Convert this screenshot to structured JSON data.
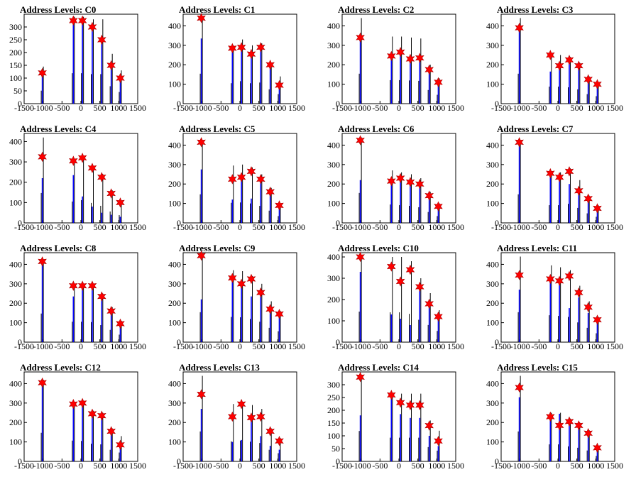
{
  "figure": {
    "title_prefix": "Address Levels"
  },
  "chart_data": [
    {
      "title": "Address Levels: C0",
      "type": "bar",
      "xlim": [
        -1500,
        1500
      ],
      "ylim": [
        0,
        350
      ],
      "yticks": [
        0,
        50,
        100,
        150,
        200,
        250,
        300
      ],
      "xticks": [
        -1500,
        -1000,
        -500,
        0,
        500,
        1000,
        1500
      ],
      "x": [
        -1020,
        -200,
        40,
        300,
        550,
        800,
        1040
      ],
      "black_peaks": [
        145,
        340,
        340,
        330,
        330,
        195,
        130
      ],
      "blue_peaks": [
        120,
        325,
        325,
        300,
        250,
        150,
        100
      ],
      "markers": [
        120,
        325,
        325,
        300,
        250,
        150,
        100
      ]
    },
    {
      "title": "Address Levels: C1",
      "type": "bar",
      "xlim": [
        -1500,
        1500
      ],
      "ylim": [
        0,
        460
      ],
      "yticks": [
        0,
        100,
        200,
        300,
        400
      ],
      "xticks": [
        -1500,
        -1000,
        -500,
        0,
        500,
        1000,
        1500
      ],
      "x": [
        -1020,
        -200,
        40,
        300,
        550,
        800,
        1040
      ],
      "black_peaks": [
        440,
        300,
        330,
        300,
        310,
        210,
        140
      ],
      "blue_peaks": [
        335,
        285,
        290,
        255,
        290,
        200,
        95
      ],
      "markers": [
        440,
        285,
        290,
        255,
        290,
        200,
        95
      ]
    },
    {
      "title": "Address Levels: C2",
      "type": "bar",
      "xlim": [
        -1500,
        1500
      ],
      "ylim": [
        0,
        460
      ],
      "yticks": [
        0,
        100,
        200,
        300,
        400
      ],
      "xticks": [
        -1500,
        -1000,
        -500,
        0,
        500,
        1000,
        1500
      ],
      "x": [
        -1020,
        -200,
        40,
        300,
        550,
        800,
        1040
      ],
      "black_peaks": [
        440,
        345,
        345,
        340,
        335,
        200,
        130
      ],
      "blue_peaks": [
        340,
        245,
        265,
        230,
        235,
        175,
        110
      ],
      "markers": [
        340,
        245,
        265,
        230,
        235,
        175,
        110
      ]
    },
    {
      "title": "Address Levels: C3",
      "type": "bar",
      "xlim": [
        -1500,
        1500
      ],
      "ylim": [
        0,
        460
      ],
      "yticks": [
        0,
        100,
        200,
        300,
        400
      ],
      "xticks": [
        -1500,
        -1000,
        -500,
        0,
        500,
        1000,
        1500
      ],
      "x": [
        -1020,
        -200,
        40,
        300,
        550,
        800,
        1040
      ],
      "black_peaks": [
        440,
        250,
        250,
        240,
        210,
        140,
        110
      ],
      "blue_peaks": [
        380,
        165,
        200,
        225,
        195,
        125,
        100
      ],
      "markers": [
        390,
        250,
        195,
        225,
        195,
        125,
        100
      ]
    },
    {
      "title": "Address Levels: C4",
      "type": "bar",
      "xlim": [
        -1500,
        1500
      ],
      "ylim": [
        0,
        440
      ],
      "yticks": [
        0,
        100,
        200,
        300,
        400
      ],
      "xticks": [
        -1500,
        -1000,
        -500,
        0,
        500,
        1000,
        1500
      ],
      "x": [
        -1020,
        -200,
        40,
        300,
        550,
        800,
        1040
      ],
      "black_peaks": [
        420,
        300,
        320,
        280,
        240,
        160,
        110
      ],
      "blue_peaks": [
        220,
        235,
        130,
        80,
        50,
        40,
        30
      ],
      "markers": [
        325,
        305,
        320,
        270,
        225,
        145,
        100
      ]
    },
    {
      "title": "Address Levels: C5",
      "type": "bar",
      "xlim": [
        -1500,
        1500
      ],
      "ylim": [
        0,
        460
      ],
      "yticks": [
        0,
        100,
        200,
        300,
        400
      ],
      "xticks": [
        -1500,
        -1000,
        -500,
        0,
        500,
        1000,
        1500
      ],
      "x": [
        -1020,
        -200,
        40,
        300,
        550,
        800,
        1040
      ],
      "black_peaks": [
        420,
        295,
        300,
        285,
        250,
        180,
        100
      ],
      "blue_peaks": [
        275,
        120,
        225,
        125,
        230,
        160,
        90
      ],
      "markers": [
        415,
        225,
        235,
        265,
        225,
        160,
        90
      ]
    },
    {
      "title": "Address Levels: C6",
      "type": "bar",
      "xlim": [
        -1500,
        1500
      ],
      "ylim": [
        0,
        460
      ],
      "yticks": [
        0,
        100,
        200,
        300,
        400
      ],
      "xticks": [
        -1500,
        -1000,
        -500,
        0,
        500,
        1000,
        1500
      ],
      "x": [
        -1020,
        -200,
        40,
        300,
        550,
        800,
        1040
      ],
      "black_peaks": [
        440,
        270,
        260,
        250,
        230,
        160,
        100
      ],
      "blue_peaks": [
        220,
        215,
        220,
        210,
        200,
        140,
        85
      ],
      "markers": [
        425,
        215,
        230,
        210,
        200,
        140,
        85
      ]
    },
    {
      "title": "Address Levels: C7",
      "type": "bar",
      "xlim": [
        -1500,
        1500
      ],
      "ylim": [
        0,
        460
      ],
      "yticks": [
        0,
        100,
        200,
        300,
        400
      ],
      "xticks": [
        -1500,
        -1000,
        -500,
        0,
        500,
        1000,
        1500
      ],
      "x": [
        -1020,
        -200,
        40,
        300,
        550,
        800,
        1040
      ],
      "black_peaks": [
        420,
        260,
        260,
        280,
        220,
        140,
        90
      ],
      "blue_peaks": [
        400,
        250,
        230,
        200,
        170,
        120,
        80
      ],
      "markers": [
        415,
        255,
        235,
        265,
        165,
        125,
        75
      ]
    },
    {
      "title": "Address Levels: C8",
      "type": "bar",
      "xlim": [
        -1500,
        1500
      ],
      "ylim": [
        0,
        460
      ],
      "yticks": [
        0,
        100,
        200,
        300,
        400
      ],
      "xticks": [
        -1500,
        -1000,
        -500,
        0,
        500,
        1000,
        1500
      ],
      "x": [
        -1020,
        -200,
        40,
        300,
        550,
        800,
        1040
      ],
      "black_peaks": [
        420,
        300,
        300,
        295,
        250,
        180,
        110
      ],
      "blue_peaks": [
        410,
        235,
        285,
        290,
        235,
        160,
        80
      ],
      "markers": [
        415,
        290,
        290,
        290,
        235,
        160,
        95
      ]
    },
    {
      "title": "Address Levels: C9",
      "type": "bar",
      "xlim": [
        -1500,
        1500
      ],
      "ylim": [
        0,
        460
      ],
      "yticks": [
        0,
        100,
        200,
        300,
        400
      ],
      "xticks": [
        -1500,
        -1000,
        -500,
        0,
        500,
        1000,
        1500
      ],
      "x": [
        -1020,
        -200,
        40,
        300,
        550,
        800,
        1040
      ],
      "black_peaks": [
        440,
        370,
        365,
        340,
        300,
        210,
        160
      ],
      "blue_peaks": [
        220,
        320,
        295,
        235,
        245,
        165,
        140
      ],
      "markers": [
        445,
        330,
        300,
        325,
        255,
        170,
        145
      ]
    },
    {
      "title": "Address Levels: C10",
      "type": "bar",
      "xlim": [
        -1500,
        1500
      ],
      "ylim": [
        0,
        420
      ],
      "yticks": [
        0,
        100,
        200,
        300,
        400
      ],
      "xticks": [
        -1500,
        -1000,
        -500,
        0,
        500,
        1000,
        1500
      ],
      "x": [
        -1020,
        -200,
        40,
        300,
        550,
        800,
        1040
      ],
      "black_peaks": [
        410,
        400,
        400,
        380,
        300,
        230,
        150
      ],
      "blue_peaks": [
        330,
        130,
        110,
        80,
        240,
        170,
        110
      ],
      "markers": [
        400,
        355,
        285,
        340,
        260,
        180,
        120
      ]
    },
    {
      "title": "Address Levels: C11",
      "type": "bar",
      "xlim": [
        -1500,
        1500
      ],
      "ylim": [
        0,
        460
      ],
      "yticks": [
        0,
        100,
        200,
        300,
        400
      ],
      "xticks": [
        -1500,
        -1000,
        -500,
        0,
        500,
        1000,
        1500
      ],
      "x": [
        -1020,
        -200,
        40,
        300,
        550,
        800,
        1040
      ],
      "black_peaks": [
        440,
        395,
        385,
        370,
        290,
        210,
        130
      ],
      "blue_peaks": [
        270,
        320,
        300,
        175,
        230,
        150,
        110
      ],
      "markers": [
        345,
        325,
        315,
        340,
        255,
        180,
        115
      ]
    },
    {
      "title": "Address Levels: C12",
      "type": "bar",
      "xlim": [
        -1500,
        1500
      ],
      "ylim": [
        0,
        460
      ],
      "yticks": [
        0,
        100,
        200,
        300,
        400
      ],
      "xticks": [
        -1500,
        -1000,
        -500,
        0,
        500,
        1000,
        1500
      ],
      "x": [
        -1020,
        -200,
        40,
        300,
        550,
        800,
        1040
      ],
      "black_peaks": [
        420,
        305,
        300,
        260,
        250,
        170,
        130
      ],
      "blue_peaks": [
        405,
        290,
        290,
        240,
        235,
        155,
        90
      ],
      "markers": [
        405,
        295,
        300,
        245,
        235,
        155,
        85
      ]
    },
    {
      "title": "Address Levels: C13",
      "type": "bar",
      "xlim": [
        -1500,
        1500
      ],
      "ylim": [
        0,
        460
      ],
      "yticks": [
        0,
        100,
        200,
        300,
        400
      ],
      "xticks": [
        -1500,
        -1000,
        -500,
        0,
        500,
        1000,
        1500
      ],
      "x": [
        -1020,
        -200,
        40,
        300,
        550,
        800,
        1040
      ],
      "black_peaks": [
        440,
        295,
        305,
        290,
        270,
        170,
        120
      ],
      "blue_peaks": [
        270,
        100,
        110,
        220,
        130,
        80,
        60
      ],
      "markers": [
        345,
        230,
        295,
        225,
        230,
        155,
        105
      ]
    },
    {
      "title": "Address Levels: C14",
      "type": "bar",
      "xlim": [
        -1500,
        1500
      ],
      "ylim": [
        0,
        350
      ],
      "yticks": [
        0,
        50,
        100,
        150,
        200,
        250,
        300
      ],
      "xticks": [
        -1500,
        -1000,
        -500,
        0,
        500,
        1000,
        1500
      ],
      "x": [
        -1020,
        -200,
        40,
        300,
        550,
        800,
        1040
      ],
      "black_peaks": [
        340,
        265,
        265,
        265,
        265,
        160,
        120
      ],
      "blue_peaks": [
        180,
        250,
        185,
        170,
        170,
        100,
        60
      ],
      "markers": [
        330,
        260,
        230,
        220,
        220,
        140,
        80
      ]
    },
    {
      "title": "Address Levels: C15",
      "type": "bar",
      "xlim": [
        -1500,
        1500
      ],
      "ylim": [
        0,
        460
      ],
      "yticks": [
        0,
        100,
        200,
        300,
        400
      ],
      "xticks": [
        -1500,
        -1000,
        -500,
        0,
        500,
        1000,
        1500
      ],
      "x": [
        -1020,
        -200,
        40,
        300,
        550,
        800,
        1040
      ],
      "black_peaks": [
        440,
        250,
        250,
        220,
        200,
        160,
        80
      ],
      "blue_peaks": [
        330,
        230,
        245,
        210,
        180,
        140,
        70
      ],
      "markers": [
        380,
        230,
        185,
        205,
        185,
        145,
        70
      ]
    }
  ]
}
